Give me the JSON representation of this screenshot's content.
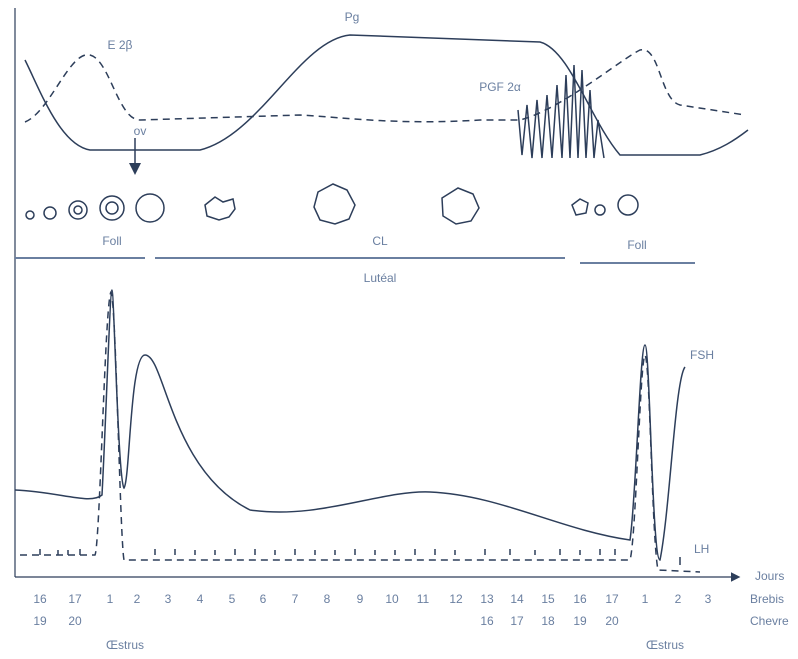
{
  "top_labels": {
    "pg": "Pg",
    "e2": "E 2β",
    "pgf": "PGF 2α",
    "ov": "ov"
  },
  "phases": {
    "foll_1": "Foll",
    "cl": "CL",
    "luteal": "Lutéal",
    "foll_2": "Foll"
  },
  "bottom_labels": {
    "fsh": "FSH",
    "lh": "LH"
  },
  "axis": {
    "unit": "Jours",
    "brebis_label": "Brebis",
    "chevre_label": "Chevre",
    "brebis": [
      "16",
      "17",
      "1",
      "2",
      "3",
      "4",
      "5",
      "6",
      "7",
      "8",
      "9",
      "10",
      "11",
      "12",
      "13",
      "14",
      "15",
      "16",
      "17",
      "1",
      "2",
      "3"
    ],
    "chevre": [
      "19",
      "20",
      null,
      null,
      null,
      null,
      null,
      null,
      null,
      null,
      null,
      null,
      null,
      null,
      "16",
      "17",
      "18",
      "19",
      "20",
      null,
      null,
      null
    ]
  },
  "oestrus": [
    "Œstrus",
    "Œstrus"
  ]
}
